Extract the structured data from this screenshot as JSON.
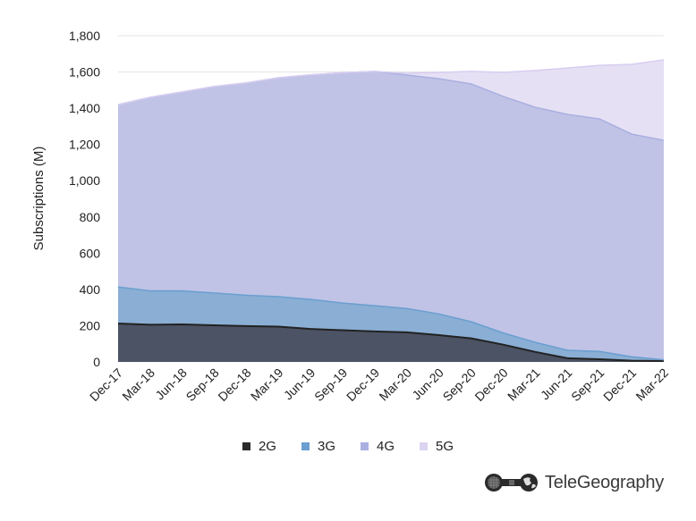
{
  "chart_data": {
    "type": "area",
    "stacked": true,
    "title": "",
    "xlabel": "",
    "ylabel": "Subscriptions (M)",
    "ylim": [
      0,
      1800
    ],
    "yticks": [
      0,
      200,
      400,
      600,
      800,
      1000,
      1200,
      1400,
      1600,
      1800
    ],
    "ytick_labels": [
      "0",
      "200",
      "400",
      "600",
      "800",
      "1,000",
      "1,200",
      "1,400",
      "1,600",
      "1,800"
    ],
    "grid": true,
    "legend_position": "bottom",
    "categories": [
      "Dec-17",
      "Mar-18",
      "Jun-18",
      "Sep-18",
      "Dec-18",
      "Mar-19",
      "Jun-19",
      "Sep-19",
      "Dec-19",
      "Mar-20",
      "Jun-20",
      "Sep-20",
      "Dec-20",
      "Mar-21",
      "Jun-21",
      "Sep-21",
      "Dec-21",
      "Mar-22"
    ],
    "series": [
      {
        "name": "2G",
        "color": "#4b5364",
        "line_color": "#222222",
        "values": [
          212,
          205,
          207,
          202,
          198,
          195,
          182,
          175,
          168,
          163,
          148,
          130,
          95,
          55,
          20,
          15,
          7,
          5
        ]
      },
      {
        "name": "3G",
        "color": "#8aaed4",
        "line_color": "#6a9fcf",
        "values": [
          202,
          187,
          185,
          178,
          170,
          165,
          163,
          150,
          142,
          132,
          117,
          92,
          65,
          53,
          44,
          43,
          21,
          7
        ]
      },
      {
        "name": "4G",
        "color": "#c0c3e6",
        "line_color": "#a9b0e0",
        "values": [
          1006,
          1068,
          1098,
          1140,
          1172,
          1208,
          1239,
          1271,
          1293,
          1288,
          1298,
          1312,
          1305,
          1297,
          1302,
          1283,
          1229,
          1211
        ]
      },
      {
        "name": "5G",
        "color": "#e6e0f4",
        "line_color": "#d8cdf0",
        "values": [
          0,
          0,
          0,
          0,
          0,
          0,
          0,
          0,
          0,
          10,
          35,
          69,
          133,
          203,
          256,
          296,
          385,
          444
        ]
      }
    ]
  },
  "legend": {
    "items": [
      {
        "label": "2G",
        "color": "#2b2b2b"
      },
      {
        "label": "3G",
        "color": "#6a9fcf"
      },
      {
        "label": "4G",
        "color": "#aab0e0"
      },
      {
        "label": "5G",
        "color": "#dcd3f2"
      }
    ]
  },
  "branding": {
    "logo_text": "TeleGeography",
    "logo_icon": "telegeography-globe-icon"
  }
}
